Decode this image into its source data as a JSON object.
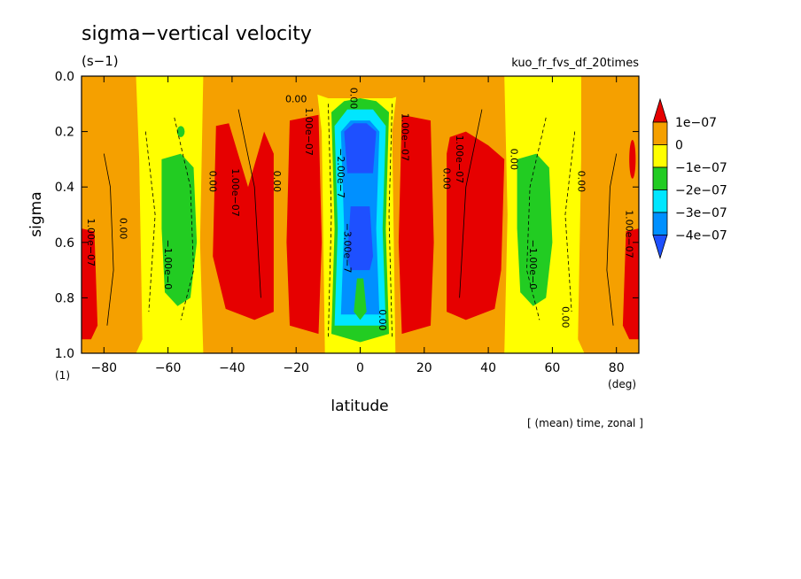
{
  "chart_data": {
    "type": "heatmap",
    "title": "sigma−vertical velocity",
    "units": "(s−1)",
    "run_name": "kuo_fr_fvs_df_20times",
    "xlabel": "latitude",
    "xunit": "(deg)",
    "ylabel": "sigma",
    "yunit": "(1)",
    "footer": "[ (mean) time, zonal ]",
    "xlim": [
      -87,
      87
    ],
    "ylim": [
      0.0,
      1.0
    ],
    "y_inverted": true,
    "xticks": [
      -80,
      -60,
      -40,
      -20,
      0,
      20,
      40,
      60,
      80
    ],
    "xtick_labels": [
      "−80",
      "−60",
      "−40",
      "−20",
      "0",
      "20",
      "40",
      "60",
      "80"
    ],
    "yticks": [
      0.0,
      0.2,
      0.4,
      0.6,
      0.8,
      1.0
    ],
    "ytick_labels": [
      "0.0",
      "0.2",
      "0.4",
      "0.6",
      "0.8",
      "1.0"
    ],
    "colorbar": {
      "labels": [
        "1e−07",
        "0",
        "−1e−07",
        "−2e−07",
        "−3e−07",
        "−4e−07"
      ],
      "colors": [
        "#e60000",
        "#f5a000",
        "#ffff00",
        "#22cc22",
        "#00e6ff",
        "#0090ff",
        "#1e50ff"
      ]
    },
    "contour_labels": [
      {
        "text": "0.00",
        "lat": -75,
        "sigma": 0.55,
        "rot": 90
      },
      {
        "text": "0.00",
        "lat": -47,
        "sigma": 0.38,
        "rot": 90
      },
      {
        "text": "0.00",
        "lat": -27,
        "sigma": 0.38,
        "rot": 90
      },
      {
        "text": "0.00",
        "lat": -20,
        "sigma": 0.095,
        "rot": 0
      },
      {
        "text": "0.00",
        "lat": 6,
        "sigma": 0.88,
        "rot": 90
      },
      {
        "text": "0.00",
        "lat": 26,
        "sigma": 0.37,
        "rot": 90
      },
      {
        "text": "0.00",
        "lat": 47,
        "sigma": 0.3,
        "rot": 90
      },
      {
        "text": "0.00",
        "lat": 68,
        "sigma": 0.38,
        "rot": 90
      },
      {
        "text": "0.00",
        "lat": 63,
        "sigma": 0.87,
        "rot": 90
      },
      {
        "text": "1.00e−07",
        "lat": -85,
        "sigma": 0.6,
        "rot": 90
      },
      {
        "text": "1.00e−07",
        "lat": -40,
        "sigma": 0.42,
        "rot": 90
      },
      {
        "text": "1.00e−07",
        "lat": -17,
        "sigma": 0.2,
        "rot": 90
      },
      {
        "text": "1.00e−07",
        "lat": 13,
        "sigma": 0.22,
        "rot": 90
      },
      {
        "text": "1.00e−07",
        "lat": 30,
        "sigma": 0.3,
        "rot": 90
      },
      {
        "text": "1.00e−07",
        "lat": 83,
        "sigma": 0.57,
        "rot": 90
      },
      {
        "text": "−1.00e−0",
        "lat": -61,
        "sigma": 0.68,
        "rot": 90
      },
      {
        "text": "−1.00e−0",
        "lat": 53,
        "sigma": 0.68,
        "rot": 90
      },
      {
        "text": "−2.00e−7",
        "lat": -7,
        "sigma": 0.35,
        "rot": 90
      },
      {
        "text": "−3.00e−7",
        "lat": -5,
        "sigma": 0.62,
        "rot": 90
      },
      {
        "text": "0.00",
        "lat": -3,
        "sigma": 0.08,
        "rot": 90
      }
    ]
  }
}
